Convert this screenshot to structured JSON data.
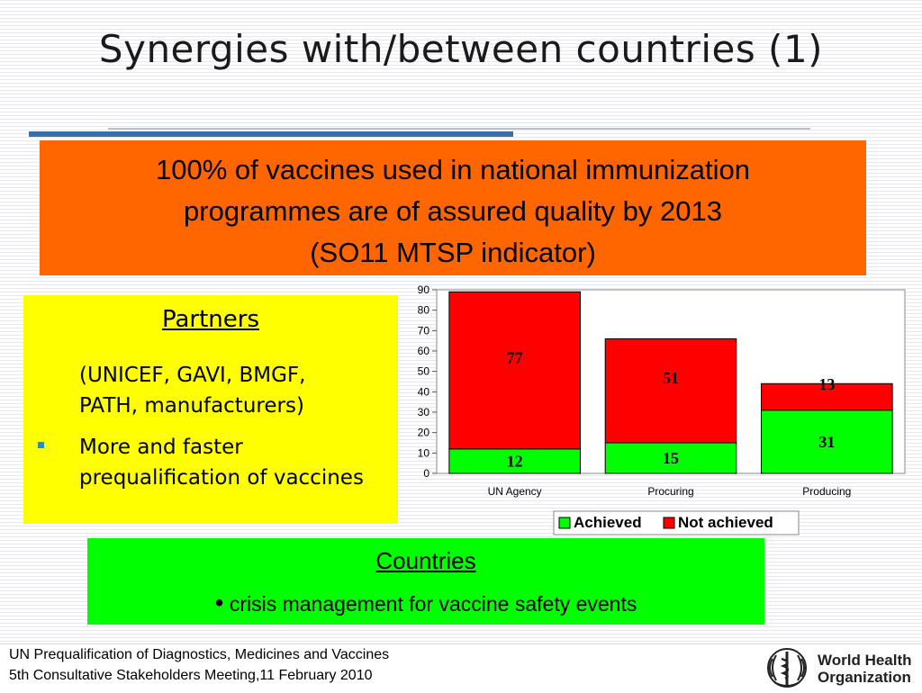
{
  "slide": {
    "title": "Synergies with/between countries (1)"
  },
  "indicator_box": {
    "line1": "100% of vaccines used in national immunization",
    "line2": "programmes are of assured quality by 2013",
    "line3": "(SO11 MTSP indicator)",
    "color": "#ff6600"
  },
  "partners": {
    "heading": "Partners",
    "list_line1": "(UNICEF, GAVI, BMGF,",
    "list_line2": "PATH, manufacturers)",
    "bullet": "More and faster prequalification of vaccines",
    "color": "#ffff00"
  },
  "countries": {
    "heading": "Countries",
    "bullet": "crisis management for vaccine safety events",
    "color": "#00ff00"
  },
  "chart_data": {
    "type": "bar",
    "stacked": true,
    "categories": [
      "UN Agency",
      "Procuring",
      "Producing"
    ],
    "series": [
      {
        "name": "Achieved",
        "values": [
          12,
          15,
          31
        ],
        "color": "#00ff00"
      },
      {
        "name": "Not achieved",
        "values": [
          77,
          51,
          13
        ],
        "color": "#ff0000"
      }
    ],
    "ylim": [
      0,
      90
    ],
    "yticks": [
      0,
      10,
      20,
      30,
      40,
      50,
      60,
      70,
      80,
      90
    ],
    "grid": false,
    "legend": "bottom-right"
  },
  "footer": {
    "line1": "UN Prequalification of Diagnostics, Medicines and Vaccines",
    "line2": "5th Consultative Stakeholders Meeting,11 February 2010",
    "org_line1": "World Health",
    "org_line2": "Organization"
  }
}
